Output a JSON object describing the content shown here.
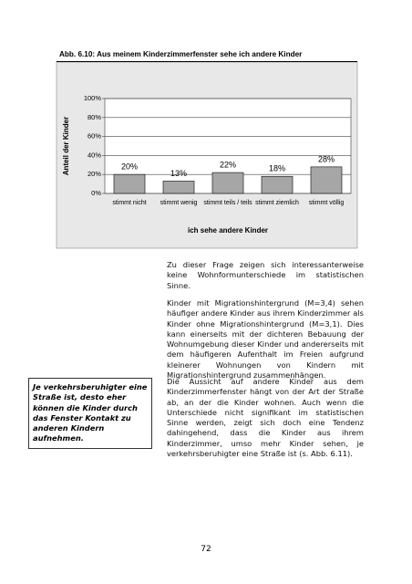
{
  "chart_data": {
    "type": "bar",
    "title": "Abb. 6.10:  Aus meinem Kinderzimmerfenster sehe ich andere Kinder",
    "categories": [
      "stimmt nicht",
      "stimmt wenig",
      "stimmt teils / teils",
      "stimmt ziemlich",
      "stimmt völlig"
    ],
    "values": [
      20,
      13,
      22,
      18,
      28
    ],
    "value_labels": [
      "20%",
      "13%",
      "22%",
      "18%",
      "28%"
    ],
    "color": "#a6a6a6",
    "ylim": [
      0,
      100
    ],
    "yticks": [
      {
        "value": 0,
        "label": "0%"
      },
      {
        "value": 20,
        "label": "20%"
      },
      {
        "value": 40,
        "label": "40%"
      },
      {
        "value": 60,
        "label": "60%"
      },
      {
        "value": 80,
        "label": "80%"
      },
      {
        "value": 100,
        "label": "100%"
      }
    ],
    "grid": true,
    "y_label": "Anteil der Kinder",
    "x_label": "ich sehe andere Kinder"
  },
  "document": {
    "paragraphs": [
      "Zu dieser Frage zeigen sich interessanterweise keine Wohnformunterschiede im statistischen Sinne.",
      "Kinder mit Migrationshintergrund (M=3,4) sehen häufiger andere Kinder aus ihrem Kinderzimmer als Kinder ohne Migrationshintergrund (M=3,1). Dies kann einerseits mit der dichteren Bebauung der Wohnumgebung dieser Kinder und andererseits mit dem häufigeren Aufenthalt im Freien aufgrund kleinerer Wohnungen von Kindern mit Migrationshintergrund zusammenhängen.",
      "Die Aussicht auf andere Kinder aus dem Kinderzimmerfenster hängt von der Art der Straße ab, an der die Kinder wohnen. Auch wenn die Unterschiede nicht signifikant im statistischen Sinne werden, zeigt sich doch eine Tendenz dahingehend, dass die Kinder aus ihrem Kinderzimmer, umso mehr Kinder sehen, je verkehrsberuhigter eine Straße ist (s. Abb. 6.11)."
    ],
    "sidebar": "Je verkehrsberuhigter eine Straße ist, desto eher können die Kinder durch das Fenster Kontakt zu anderen Kindern aufnehmen.",
    "page_number": "72"
  }
}
